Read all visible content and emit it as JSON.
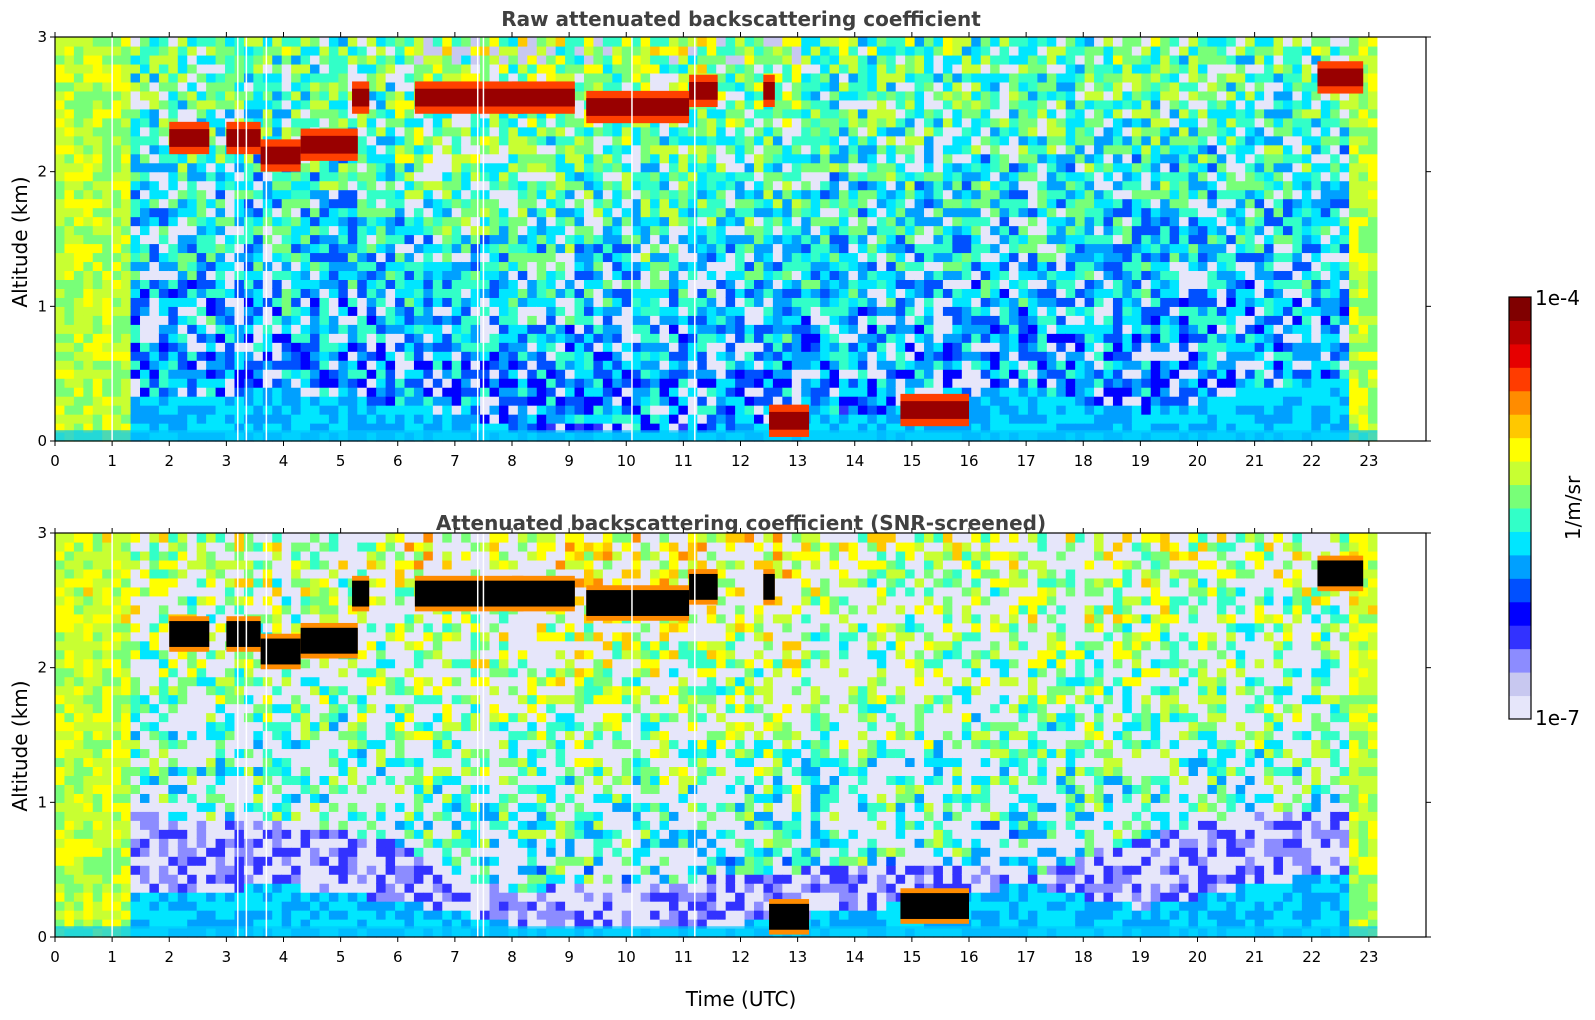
{
  "chart_data": [
    {
      "type": "heatmap",
      "title": "Raw attenuated backscattering coefficient",
      "xlabel": "",
      "ylabel": "Altitude (km)",
      "xlim": [
        0,
        24
      ],
      "ylim": [
        0,
        3
      ],
      "x_ticks": [
        "0",
        "1",
        "2",
        "3",
        "4",
        "5",
        "6",
        "7",
        "8",
        "9",
        "10",
        "11",
        "12",
        "13",
        "14",
        "15",
        "16",
        "17",
        "18",
        "19",
        "20",
        "21",
        "22",
        "23"
      ],
      "y_ticks": [
        "0",
        "1",
        "2",
        "3"
      ],
      "data_end_time": 23.15,
      "features": {
        "boundary_layer_top_km": [
          [
            0,
            0.3
          ],
          [
            1,
            0.3
          ],
          [
            2,
            0.32
          ],
          [
            3,
            0.36
          ],
          [
            4,
            0.38
          ],
          [
            5,
            0.33
          ],
          [
            6,
            0.27
          ],
          [
            7,
            0.2
          ],
          [
            8,
            0.1
          ],
          [
            9,
            0.08
          ],
          [
            10,
            0.07
          ],
          [
            11,
            0.08
          ],
          [
            12,
            0.1
          ],
          [
            13,
            0.16
          ],
          [
            14,
            0.2
          ],
          [
            15,
            0.26
          ],
          [
            16,
            0.33
          ],
          [
            17,
            0.4
          ],
          [
            18,
            0.3
          ],
          [
            19,
            0.22
          ],
          [
            20,
            0.3
          ],
          [
            21,
            0.4
          ],
          [
            22,
            0.45
          ],
          [
            23,
            0.5
          ]
        ],
        "cloud_segments": [
          {
            "t_start": 2.0,
            "t_end": 2.7,
            "alt_km": 2.25
          },
          {
            "t_start": 3.0,
            "t_end": 3.6,
            "alt_km": 2.25
          },
          {
            "t_start": 3.6,
            "t_end": 4.3,
            "alt_km": 2.12
          },
          {
            "t_start": 4.3,
            "t_end": 5.3,
            "alt_km": 2.2
          },
          {
            "t_start": 5.2,
            "t_end": 5.5,
            "alt_km": 2.55
          },
          {
            "t_start": 6.3,
            "t_end": 8.2,
            "alt_km": 2.55
          },
          {
            "t_start": 8.0,
            "t_end": 9.1,
            "alt_km": 2.55
          },
          {
            "t_start": 9.3,
            "t_end": 11.1,
            "alt_km": 2.48
          },
          {
            "t_start": 11.1,
            "t_end": 11.6,
            "alt_km": 2.6
          },
          {
            "t_start": 12.4,
            "t_end": 12.6,
            "alt_km": 2.6
          },
          {
            "t_start": 12.5,
            "t_end": 13.2,
            "alt_km": 0.15
          },
          {
            "t_start": 14.8,
            "t_end": 16.0,
            "alt_km": 0.23
          },
          {
            "t_start": 22.1,
            "t_end": 22.9,
            "alt_km": 2.7
          }
        ],
        "data_gaps_hours": [
          1.0,
          3.2,
          3.35,
          3.7,
          7.4,
          7.5,
          10.1,
          11.2
        ]
      }
    },
    {
      "type": "heatmap",
      "title": "Attenuated backscattering coefficient (SNR-screened)",
      "xlabel": "Time (UTC)",
      "ylabel": "Altitude (km)",
      "xlim": [
        0,
        24
      ],
      "ylim": [
        0,
        3
      ],
      "x_ticks": [
        "0",
        "1",
        "2",
        "3",
        "4",
        "5",
        "6",
        "7",
        "8",
        "9",
        "10",
        "11",
        "12",
        "13",
        "14",
        "15",
        "16",
        "17",
        "18",
        "19",
        "20",
        "21",
        "22",
        "23"
      ],
      "y_ticks": [
        "0",
        "1",
        "2",
        "3"
      ],
      "data_end_time": 23.15,
      "screened_low_snr_region_top_km": [
        [
          1,
          0.95
        ],
        [
          2,
          0.9
        ],
        [
          4,
          0.85
        ],
        [
          6,
          0.7
        ],
        [
          7,
          0.45
        ],
        [
          8,
          0.35
        ],
        [
          10,
          0.4
        ],
        [
          12,
          0.45
        ],
        [
          14,
          0.55
        ],
        [
          16,
          0.55
        ],
        [
          17,
          0.45
        ],
        [
          18,
          0.6
        ],
        [
          20,
          0.85
        ],
        [
          22,
          0.95
        ]
      ]
    }
  ],
  "colorbar": {
    "label": "1/m/sr",
    "max_label": "1e-4",
    "min_label": "1e-7",
    "scale": "log",
    "colors": [
      "#e6e6fa",
      "#c8c8f0",
      "#8c8cff",
      "#3232ff",
      "#0000ff",
      "#0050ff",
      "#00a0ff",
      "#00e6ff",
      "#32ffc8",
      "#78ff78",
      "#c8ff32",
      "#ffff00",
      "#ffc800",
      "#ff8c00",
      "#ff3c00",
      "#e60000",
      "#b40000",
      "#800000"
    ]
  }
}
